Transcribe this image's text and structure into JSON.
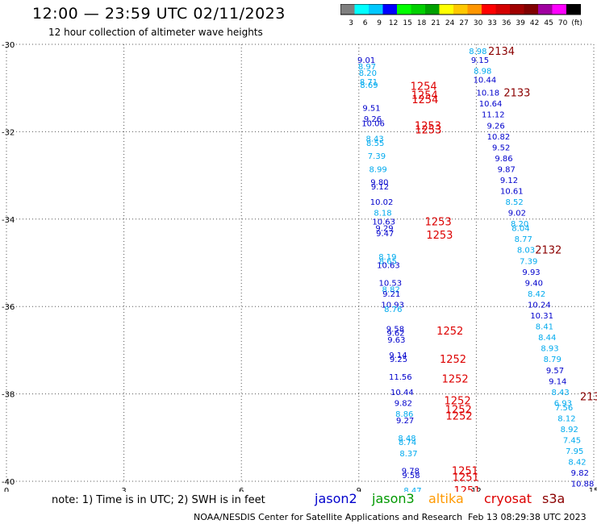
{
  "title": "12:00 — 23:59 UTC 02/11/2023",
  "subtitle": "12 hour collection of altimeter wave heights",
  "colorbar": {
    "colors": [
      "#7f7f7f",
      "#00ffff",
      "#00c8ff",
      "#0000ff",
      "#00ff00",
      "#00d000",
      "#00a000",
      "#ffff00",
      "#ffc800",
      "#ff9600",
      "#ff0000",
      "#d40000",
      "#a00000",
      "#7f0000",
      "#a000a0",
      "#ff00ff",
      "#000000"
    ],
    "labels": [
      "3",
      "6",
      "9",
      "12",
      "15",
      "18",
      "21",
      "24",
      "27",
      "30",
      "33",
      "36",
      "39",
      "42",
      "45",
      "70",
      "(ft)"
    ]
  },
  "note": "note:  1) Time is in UTC;  2) SWH is in feet",
  "satellites": [
    {
      "name": "jason2",
      "color": "#0000cc"
    },
    {
      "name": "jason3",
      "color": "#009900"
    },
    {
      "name": "altika",
      "color": "#ff9900"
    },
    {
      "name": "cryosat",
      "color": "#dd0000"
    },
    {
      "name": "s3a",
      "color": "#8b0000"
    }
  ],
  "credit": "NOAA/NESDIS Center for Satellite Applications and Research",
  "timestamp": "Feb 13 08:29:38 UTC 2023",
  "chart_data": {
    "type": "scatter",
    "title": "12:00 — 23:59 UTC 02/11/2023",
    "xlim": [
      0,
      15
    ],
    "ylim": [
      -40,
      -30
    ],
    "xticks": [
      "0",
      "3",
      "6",
      "9",
      "12",
      "15"
    ],
    "yticks": [
      "-30",
      "-32",
      "-34",
      "-36",
      "-38",
      "-40"
    ],
    "grid": true,
    "series": [
      {
        "name": "jason2",
        "color": "#0000cc",
        "x": 9.05,
        "points": [
          [
            -30.35,
            "9.01",
            "#0000cc"
          ],
          [
            -30.5,
            "8.97",
            "#00aaee"
          ],
          [
            -30.65,
            "8.20",
            "#00aaee"
          ],
          [
            -30.85,
            "8.71",
            "#00aaee"
          ],
          [
            -30.92,
            "8.69",
            "#00aaee"
          ],
          [
            -31.45,
            "9.51",
            "#0000cc"
          ],
          [
            -31.7,
            "9.26",
            "#0000cc"
          ],
          [
            -31.8,
            "10.06",
            "#0000cc"
          ],
          [
            -32.15,
            "8.43",
            "#00aaee"
          ],
          [
            -32.25,
            "8.55",
            "#00aaee"
          ],
          [
            -32.55,
            "7.39",
            "#00aaee"
          ],
          [
            -32.85,
            "8.99",
            "#00aaee"
          ],
          [
            -33.15,
            "9.80",
            "#0000cc"
          ],
          [
            -33.25,
            "9.12",
            "#0000cc"
          ],
          [
            -33.6,
            "10.02",
            "#0000cc"
          ],
          [
            -33.85,
            "8.18",
            "#00aaee"
          ],
          [
            -34.05,
            "10.63",
            "#0000cc"
          ],
          [
            -34.2,
            "9.29",
            "#0000cc"
          ],
          [
            -34.32,
            "9.47",
            "#0000cc"
          ],
          [
            -34.85,
            "8.19",
            "#00aaee"
          ],
          [
            -34.95,
            "8.65",
            "#00aaee"
          ],
          [
            -35.05,
            "10.63",
            "#0000cc"
          ],
          [
            -35.45,
            "10.53",
            "#0000cc"
          ],
          [
            -35.6,
            "8.82",
            "#00aaee"
          ],
          [
            -35.7,
            "9.21",
            "#0000cc"
          ],
          [
            -35.95,
            "10.93",
            "#0000cc"
          ],
          [
            -36.05,
            "8.76",
            "#00aaee"
          ],
          [
            -36.5,
            "9.58",
            "#0000cc"
          ],
          [
            -36.6,
            "9.62",
            "#0000cc"
          ],
          [
            -36.75,
            "9.63",
            "#0000cc"
          ],
          [
            -37.1,
            "9.14",
            "#0000cc"
          ],
          [
            -37.2,
            "9.25",
            "#0000cc"
          ],
          [
            -37.6,
            "11.56",
            "#0000cc"
          ],
          [
            -37.95,
            "10.44",
            "#0000cc"
          ],
          [
            -38.2,
            "9.82",
            "#0000cc"
          ],
          [
            -38.45,
            "8.86",
            "#00aaee"
          ],
          [
            -38.6,
            "9.27",
            "#0000cc"
          ],
          [
            -39.0,
            "8.48",
            "#00aaee"
          ],
          [
            -39.1,
            "8.74",
            "#00aaee"
          ],
          [
            -39.35,
            "8.37",
            "#00aaee"
          ],
          [
            -39.75,
            "9.78",
            "#0000cc"
          ],
          [
            -39.85,
            "9.58",
            "#0000cc"
          ],
          [
            -40.2,
            "8.47",
            "#00aaee"
          ]
        ]
      },
      {
        "name": "s3a",
        "color": "#8b0000",
        "x": 12.4,
        "points": [
          [
            -30.15,
            "8.98",
            "#00aaee"
          ],
          [
            -30.35,
            "9.15",
            "#0000cc"
          ],
          [
            -30.6,
            "8.98",
            "#00aaee"
          ],
          [
            -30.8,
            "10.44",
            "#0000cc"
          ],
          [
            -31.1,
            "10.18",
            "#0000cc"
          ],
          [
            -31.35,
            "10.64",
            "#0000cc"
          ],
          [
            -31.6,
            "11.12",
            "#0000cc"
          ],
          [
            -31.85,
            "9.26",
            "#0000cc"
          ],
          [
            -32.1,
            "10.82",
            "#0000cc"
          ],
          [
            -32.35,
            "9.52",
            "#0000cc"
          ],
          [
            -32.6,
            "9.86",
            "#0000cc"
          ],
          [
            -32.85,
            "9.87",
            "#0000cc"
          ],
          [
            -33.1,
            "9.12",
            "#0000cc"
          ],
          [
            -33.35,
            "10.61",
            "#0000cc"
          ],
          [
            -33.6,
            "8.52",
            "#00aaee"
          ],
          [
            -33.85,
            "9.02",
            "#0000cc"
          ],
          [
            -34.1,
            "8.20",
            "#00aaee"
          ],
          [
            -34.2,
            "8.04",
            "#00aaee"
          ],
          [
            -34.45,
            "8.77",
            "#00aaee"
          ],
          [
            -34.7,
            "8.03",
            "#00aaee"
          ],
          [
            -34.95,
            "7.39",
            "#00aaee"
          ],
          [
            -35.2,
            "9.93",
            "#0000cc"
          ],
          [
            -35.45,
            "9.40",
            "#0000cc"
          ],
          [
            -35.7,
            "8.42",
            "#00aaee"
          ],
          [
            -35.95,
            "10.24",
            "#0000cc"
          ],
          [
            -36.2,
            "10.31",
            "#0000cc"
          ],
          [
            -36.45,
            "8.41",
            "#00aaee"
          ],
          [
            -36.7,
            "8.44",
            "#00aaee"
          ],
          [
            -36.95,
            "8.93",
            "#00aaee"
          ],
          [
            -37.2,
            "8.79",
            "#00aaee"
          ],
          [
            -37.45,
            "9.57",
            "#0000cc"
          ],
          [
            -37.7,
            "9.14",
            "#0000cc"
          ],
          [
            -37.95,
            "8.43",
            "#00aaee"
          ],
          [
            -38.2,
            "6.93",
            "#00aaee"
          ],
          [
            -38.3,
            "7.56",
            "#00aaee"
          ],
          [
            -38.55,
            "8.12",
            "#00aaee"
          ],
          [
            -38.8,
            "8.92",
            "#00aaee"
          ],
          [
            -39.05,
            "7.45",
            "#00aaee"
          ],
          [
            -39.3,
            "7.95",
            "#00aaee"
          ],
          [
            -39.55,
            "8.42",
            "#00aaee"
          ],
          [
            -39.8,
            "9.82",
            "#0000cc"
          ],
          [
            -40.05,
            "10.88",
            "#0000cc"
          ],
          [
            -40.3,
            "10.21",
            "#0000cc"
          ]
        ]
      }
    ],
    "pass_labels": [
      {
        "text": "1254",
        "lat": -30.95,
        "x": 9.0,
        "color": "#dd0000"
      },
      {
        "text": "1254",
        "lat": -31.15,
        "x": 9.0,
        "color": "#dd0000"
      },
      {
        "text": "1254",
        "lat": -31.25,
        "x": 9.0,
        "color": "#dd0000"
      },
      {
        "text": "1253",
        "lat": -31.85,
        "x": 9.1,
        "color": "#dd0000"
      },
      {
        "text": "1253",
        "lat": -31.95,
        "x": 9.1,
        "color": "#dd0000"
      },
      {
        "text": "1253",
        "lat": -34.05,
        "x": 9.3,
        "color": "#dd0000"
      },
      {
        "text": "1253",
        "lat": -34.35,
        "x": 9.3,
        "color": "#dd0000"
      },
      {
        "text": "1252",
        "lat": -36.55,
        "x": 9.7,
        "color": "#dd0000"
      },
      {
        "text": "1252",
        "lat": -37.2,
        "x": 9.7,
        "color": "#dd0000"
      },
      {
        "text": "1252",
        "lat": -37.65,
        "x": 9.7,
        "color": "#dd0000"
      },
      {
        "text": "1252",
        "lat": -38.15,
        "x": 9.7,
        "color": "#dd0000"
      },
      {
        "text": "1252",
        "lat": -38.35,
        "x": 9.7,
        "color": "#dd0000"
      },
      {
        "text": "1252",
        "lat": -38.5,
        "x": 9.7,
        "color": "#dd0000"
      },
      {
        "text": "1251",
        "lat": -39.75,
        "x": 10.0,
        "color": "#dd0000"
      },
      {
        "text": "1251",
        "lat": -39.9,
        "x": 10.0,
        "color": "#dd0000"
      },
      {
        "text": "1251",
        "lat": -40.2,
        "x": 10.0,
        "color": "#dd0000"
      },
      {
        "text": "2134",
        "lat": -30.15,
        "x": 12.3,
        "color": "#8b0000"
      },
      {
        "text": "2133",
        "lat": -31.1,
        "x": 12.7,
        "color": "#8b0000"
      },
      {
        "text": "2132",
        "lat": -34.7,
        "x": 13.5,
        "color": "#8b0000"
      },
      {
        "text": "213",
        "lat": -38.05,
        "x": 14.65,
        "color": "#8b0000"
      }
    ]
  }
}
